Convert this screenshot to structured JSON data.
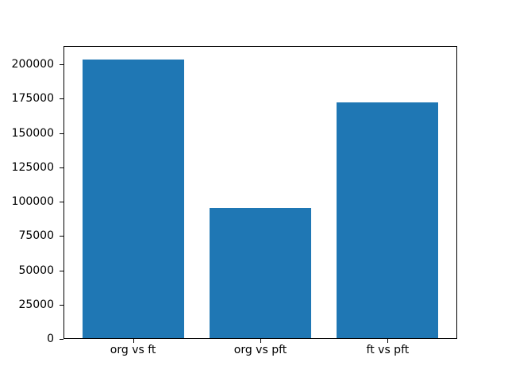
{
  "chart_data": {
    "type": "bar",
    "title": "",
    "xlabel": "",
    "ylabel": "",
    "categories": [
      "org vs ft",
      "org vs pft",
      "ft vs pft"
    ],
    "values": [
      203300,
      95000,
      172000
    ],
    "yticks": [
      0,
      25000,
      50000,
      75000,
      100000,
      125000,
      150000,
      175000,
      200000
    ],
    "ytick_labels": [
      "0",
      "25000",
      "50000",
      "75000",
      "100000",
      "125000",
      "150000",
      "175000",
      "200000"
    ],
    "ylim": [
      0,
      213465
    ],
    "xlim": [
      -0.54,
      2.54
    ],
    "bar_width": 0.8,
    "bar_color": "#1f77b4",
    "background_color": "#ffffff",
    "text_color": "#000000",
    "grid": false,
    "legend": null
  }
}
